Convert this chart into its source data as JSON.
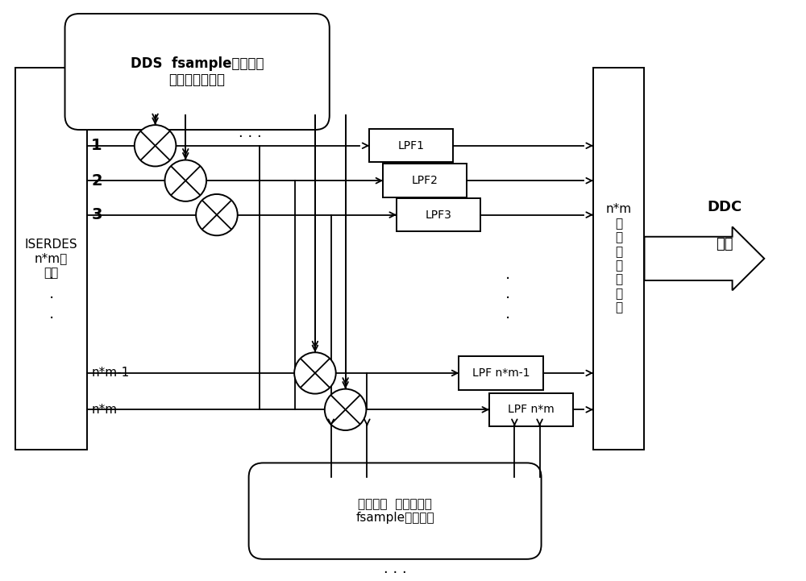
{
  "figsize": [
    10.0,
    7.21
  ],
  "dpi": 100,
  "bg_color": "#ffffff",
  "dds_text": "DDS  fsample采样频率\n频率控制字可控",
  "iserdes_text": "ISERDES\nn*m路\n并行",
  "adder_text": "n*m\n路\n流\n水\n线\n型\n加\n法",
  "ddc_label": "DDC\n输出",
  "poly_text": "多相滤波  低通滤波器\nfsample采样频率",
  "lpf_labels": [
    "LPF1",
    "LPF2",
    "LPF3",
    "LPF n*m-1",
    "LPF n*m"
  ],
  "row_labels": [
    "1",
    "2",
    "3",
    "n*m-1",
    "n*m"
  ],
  "dots_top": ". . .",
  "dots_mid": ".\n.\n.",
  "dots_bottom": ". . ."
}
